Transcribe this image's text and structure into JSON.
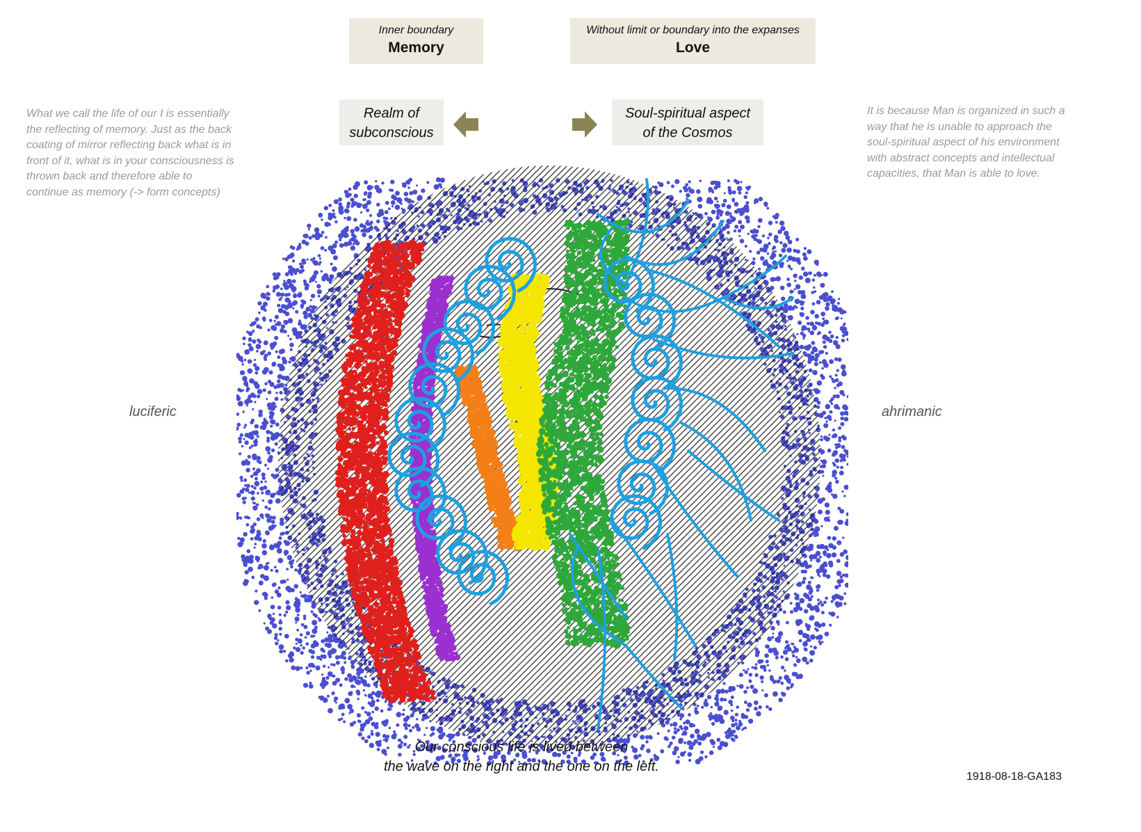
{
  "top_boxes": {
    "memory": {
      "subtitle": "Inner boundary",
      "title": "Memory"
    },
    "love": {
      "subtitle": "Without limit or boundary into the expanses",
      "title": "Love"
    }
  },
  "mid_boxes": {
    "left": {
      "line1": "Realm of",
      "line2": "subconscious"
    },
    "right": {
      "line1": "Soul-spiritual aspect",
      "line2": "of the Cosmos"
    }
  },
  "side_notes": {
    "left": [
      "What we call the life of our I is essentially",
      "the reflecting of memory. Just as the back",
      "coating of mirror reflecting back what is in",
      "front of it,  what is in your consciousness is",
      "thrown back and therefore able to",
      "continue as memory (-> form concepts)"
    ],
    "right": [
      "It is because Man is organized in such a",
      "way that he is unable to approach the",
      "soul-spiritual aspect of his environment",
      "with abstract concepts and intellectual",
      "capacities, that Man is able to love."
    ]
  },
  "labels": {
    "left": "luciferic",
    "right": "ahrimanic"
  },
  "caption": {
    "line1": "Our conscious life is lived between",
    "line2": "the wave on the right and the one on the left."
  },
  "reference": "1918-08-18-GA183",
  "colors": {
    "box_fill": "#eceade",
    "arrow": "#8b8455",
    "blue_dots": "#4a4fd0",
    "red": "#e0201c",
    "purple": "#9b30d0",
    "orange": "#f57f17",
    "yellow": "#f5e600",
    "green": "#2ea83a",
    "cyan_lines": "#1ea0e0",
    "hatching": "#1a1a1a"
  },
  "icons": {
    "left_arrow": "arrow-left-icon",
    "right_arrow": "arrow-right-icon"
  }
}
